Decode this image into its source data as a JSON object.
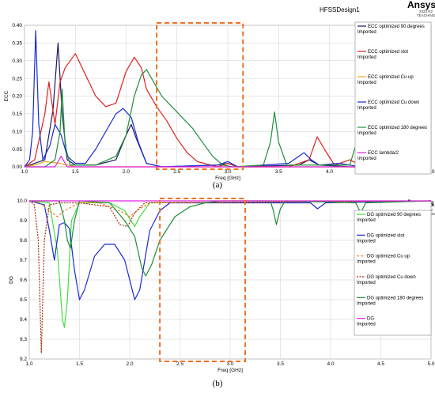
{
  "chart_data": [
    {
      "type": "line",
      "panel": "(a)",
      "design": "HFSSDesign1",
      "brand": "Ansys",
      "brand_sub1": "2023 R2",
      "brand_sub2": "TEACHING",
      "xlabel": "Freq [GHz]",
      "ylabel": "ECC",
      "xlim": [
        1.0,
        5.0
      ],
      "ylim": [
        0.0,
        0.4
      ],
      "xticks": [
        1.0,
        1.5,
        2.0,
        2.5,
        3.0,
        3.5,
        4.0,
        4.5,
        5.0
      ],
      "yticks": [
        0.0,
        0.05,
        0.1,
        0.15,
        0.2,
        0.25,
        0.3,
        0.35,
        0.4
      ],
      "grid": true,
      "legend_position": "top-right",
      "highlight_box": {
        "x_from": 2.3,
        "x_to": 3.15,
        "y_from": 0.0,
        "y_to": 0.4
      },
      "series": [
        {
          "name": "ECC optimized 90 degrees",
          "sub": "Imported",
          "color": "#1a1a5e",
          "points": [
            [
              1.0,
              0.0
            ],
            [
              1.1,
              0.01
            ],
            [
              1.2,
              0.02
            ],
            [
              1.28,
              0.16
            ],
            [
              1.33,
              0.35
            ],
            [
              1.37,
              0.15
            ],
            [
              1.42,
              0.02
            ],
            [
              1.5,
              0.005
            ],
            [
              1.7,
              0.005
            ],
            [
              1.9,
              0.02
            ],
            [
              2.0,
              0.09
            ],
            [
              2.05,
              0.12
            ],
            [
              2.1,
              0.08
            ],
            [
              2.2,
              0.01
            ],
            [
              2.35,
              0.0
            ],
            [
              2.9,
              0.005
            ],
            [
              3.0,
              0.01
            ],
            [
              3.1,
              0.0
            ],
            [
              3.7,
              0.005
            ],
            [
              3.8,
              0.02
            ],
            [
              3.9,
              0.005
            ],
            [
              4.2,
              0.0
            ],
            [
              5.0,
              0.0
            ]
          ]
        },
        {
          "name": "ECC optimized slot",
          "sub": "Imported",
          "color": "#e02020",
          "points": [
            [
              1.0,
              0.0
            ],
            [
              1.1,
              0.02
            ],
            [
              1.2,
              0.15
            ],
            [
              1.24,
              0.24
            ],
            [
              1.3,
              0.12
            ],
            [
              1.35,
              0.24
            ],
            [
              1.4,
              0.28
            ],
            [
              1.5,
              0.32
            ],
            [
              1.6,
              0.26
            ],
            [
              1.7,
              0.2
            ],
            [
              1.8,
              0.17
            ],
            [
              1.9,
              0.18
            ],
            [
              2.0,
              0.27
            ],
            [
              2.08,
              0.31
            ],
            [
              2.15,
              0.28
            ],
            [
              2.2,
              0.22
            ],
            [
              2.3,
              0.17
            ],
            [
              2.4,
              0.13
            ],
            [
              2.5,
              0.08
            ],
            [
              2.6,
              0.04
            ],
            [
              2.7,
              0.015
            ],
            [
              2.9,
              0.0
            ],
            [
              3.0,
              0.01
            ],
            [
              3.1,
              0.0
            ],
            [
              3.6,
              0.0
            ],
            [
              3.8,
              0.02
            ],
            [
              3.88,
              0.085
            ],
            [
              3.95,
              0.05
            ],
            [
              4.05,
              0.005
            ],
            [
              4.2,
              0.02
            ],
            [
              4.3,
              0.005
            ],
            [
              5.0,
              0.0
            ]
          ]
        },
        {
          "name": "ECC optimized Cu up",
          "sub": "Imported",
          "color": "#f0a020",
          "points": [
            [
              1.0,
              0.0
            ],
            [
              1.1,
              0.005
            ],
            [
              1.2,
              0.015
            ],
            [
              1.35,
              0.01
            ],
            [
              1.5,
              0.0
            ],
            [
              5.0,
              0.0
            ]
          ]
        },
        {
          "name": "ECC optimized Cu down",
          "sub": "Imported",
          "color": "#1a2ad8",
          "points": [
            [
              1.0,
              0.0
            ],
            [
              1.05,
              0.02
            ],
            [
              1.08,
              0.1
            ],
            [
              1.11,
              0.385
            ],
            [
              1.14,
              0.12
            ],
            [
              1.18,
              0.02
            ],
            [
              1.25,
              0.06
            ],
            [
              1.3,
              0.12
            ],
            [
              1.36,
              0.09
            ],
            [
              1.42,
              0.03
            ],
            [
              1.5,
              0.01
            ],
            [
              1.6,
              0.01
            ],
            [
              1.7,
              0.05
            ],
            [
              1.8,
              0.1
            ],
            [
              1.9,
              0.15
            ],
            [
              1.97,
              0.165
            ],
            [
              2.05,
              0.14
            ],
            [
              2.12,
              0.07
            ],
            [
              2.2,
              0.01
            ],
            [
              2.35,
              0.0
            ],
            [
              2.9,
              0.005
            ],
            [
              3.0,
              0.015
            ],
            [
              3.1,
              0.0
            ],
            [
              3.6,
              0.01
            ],
            [
              3.75,
              0.04
            ],
            [
              3.82,
              0.02
            ],
            [
              3.9,
              0.005
            ],
            [
              4.1,
              0.01
            ],
            [
              4.3,
              0.0
            ],
            [
              5.0,
              0.0
            ]
          ]
        },
        {
          "name": "ECC optimized 180 degrees",
          "sub": "Imported",
          "color": "#1f8f3a",
          "points": [
            [
              1.0,
              0.0
            ],
            [
              1.2,
              0.0
            ],
            [
              1.3,
              0.02
            ],
            [
              1.35,
              0.1
            ],
            [
              1.37,
              0.22
            ],
            [
              1.4,
              0.06
            ],
            [
              1.45,
              0.005
            ],
            [
              1.7,
              0.005
            ],
            [
              1.9,
              0.03
            ],
            [
              2.0,
              0.09
            ],
            [
              2.08,
              0.2
            ],
            [
              2.15,
              0.26
            ],
            [
              2.2,
              0.275
            ],
            [
              2.27,
              0.24
            ],
            [
              2.35,
              0.2
            ],
            [
              2.45,
              0.17
            ],
            [
              2.55,
              0.14
            ],
            [
              2.65,
              0.11
            ],
            [
              2.75,
              0.07
            ],
            [
              2.85,
              0.03
            ],
            [
              2.95,
              0.005
            ],
            [
              3.05,
              0.0
            ],
            [
              3.35,
              0.005
            ],
            [
              3.42,
              0.07
            ],
            [
              3.46,
              0.155
            ],
            [
              3.5,
              0.07
            ],
            [
              3.58,
              0.005
            ],
            [
              4.2,
              0.005
            ],
            [
              4.28,
              0.08
            ],
            [
              4.3,
              0.1
            ],
            [
              4.35,
              0.03
            ],
            [
              4.45,
              0.0
            ],
            [
              5.0,
              0.0
            ]
          ]
        },
        {
          "name": "ECC lambda/2",
          "sub": "Imported",
          "color": "#e020e0",
          "points": [
            [
              1.0,
              0.0
            ],
            [
              1.3,
              0.0
            ],
            [
              1.36,
              0.03
            ],
            [
              1.42,
              0.0
            ],
            [
              5.0,
              0.0
            ]
          ]
        }
      ]
    },
    {
      "type": "line",
      "panel": "(b)",
      "design": "HFSSDesign1",
      "brand": "Ansys",
      "brand_sub1": "2023 R2",
      "brand_sub2": "TEACHING",
      "xlabel": "Freq [GHz]",
      "ylabel": "DG",
      "xlim": [
        1.0,
        5.0
      ],
      "ylim": [
        9.2,
        10.0
      ],
      "xticks": [
        1.0,
        1.5,
        2.0,
        2.5,
        3.0,
        3.5,
        4.0,
        4.5,
        5.0
      ],
      "yticks": [
        9.2,
        9.3,
        9.4,
        9.5,
        9.6,
        9.7,
        9.8,
        9.9,
        10.0
      ],
      "grid": true,
      "legend_position": "top-right",
      "highlight_box": {
        "x_from": 2.3,
        "x_to": 3.15,
        "y_from": 9.2,
        "y_to": 10.0
      },
      "series": [
        {
          "name": "DG optimized 90 degrees",
          "sub": "Imported",
          "color": "#40e040",
          "dash": "",
          "points": [
            [
              1.0,
              10.0
            ],
            [
              1.2,
              9.99
            ],
            [
              1.28,
              9.75
            ],
            [
              1.33,
              9.4
            ],
            [
              1.35,
              9.36
            ],
            [
              1.38,
              9.5
            ],
            [
              1.42,
              9.9
            ],
            [
              1.5,
              9.99
            ],
            [
              1.8,
              9.99
            ],
            [
              1.95,
              9.95
            ],
            [
              2.05,
              9.87
            ],
            [
              2.1,
              9.92
            ],
            [
              2.2,
              9.99
            ],
            [
              5.0,
              10.0
            ]
          ]
        },
        {
          "name": "DG optimized slot",
          "sub": "Imported",
          "color": "#1a2ad8",
          "dash": "",
          "points": [
            [
              1.0,
              10.0
            ],
            [
              1.15,
              9.98
            ],
            [
              1.2,
              9.85
            ],
            [
              1.25,
              9.7
            ],
            [
              1.3,
              9.88
            ],
            [
              1.35,
              9.89
            ],
            [
              1.4,
              9.86
            ],
            [
              1.45,
              9.65
            ],
            [
              1.5,
              9.5
            ],
            [
              1.55,
              9.55
            ],
            [
              1.65,
              9.72
            ],
            [
              1.75,
              9.78
            ],
            [
              1.85,
              9.78
            ],
            [
              1.95,
              9.7
            ],
            [
              2.05,
              9.5
            ],
            [
              2.1,
              9.55
            ],
            [
              2.15,
              9.7
            ],
            [
              2.2,
              9.85
            ],
            [
              2.3,
              9.95
            ],
            [
              2.4,
              9.99
            ],
            [
              3.8,
              9.99
            ],
            [
              3.87,
              9.96
            ],
            [
              3.95,
              9.99
            ],
            [
              5.0,
              10.0
            ]
          ]
        },
        {
          "name": "DG optimized Cu up",
          "sub": "Imported",
          "color": "#f08030",
          "dash": "3,2",
          "points": [
            [
              1.0,
              10.0
            ],
            [
              1.1,
              9.99
            ],
            [
              1.2,
              9.95
            ],
            [
              1.28,
              9.92
            ],
            [
              1.35,
              9.95
            ],
            [
              1.5,
              9.99
            ],
            [
              1.7,
              9.99
            ],
            [
              1.9,
              9.95
            ],
            [
              2.0,
              9.92
            ],
            [
              2.1,
              9.96
            ],
            [
              2.2,
              9.99
            ],
            [
              5.0,
              10.0
            ]
          ]
        },
        {
          "name": "DG optimized Cu down",
          "sub": "Imported",
          "color": "#a03010",
          "dash": "2,1.5",
          "points": [
            [
              1.0,
              10.0
            ],
            [
              1.05,
              9.98
            ],
            [
              1.09,
              9.8
            ],
            [
              1.12,
              9.23
            ],
            [
              1.15,
              9.8
            ],
            [
              1.2,
              9.98
            ],
            [
              1.3,
              9.99
            ],
            [
              1.5,
              9.99
            ],
            [
              1.8,
              9.97
            ],
            [
              1.9,
              9.88
            ],
            [
              1.98,
              9.87
            ],
            [
              2.05,
              9.94
            ],
            [
              2.15,
              9.99
            ],
            [
              5.0,
              10.0
            ]
          ]
        },
        {
          "name": "DG optimized 180 degrees",
          "sub": "Imported",
          "color": "#1f8f3a",
          "dash": "",
          "points": [
            [
              1.0,
              10.0
            ],
            [
              1.3,
              10.0
            ],
            [
              1.35,
              9.9
            ],
            [
              1.38,
              9.8
            ],
            [
              1.41,
              9.76
            ],
            [
              1.45,
              9.9
            ],
            [
              1.5,
              10.0
            ],
            [
              1.8,
              9.99
            ],
            [
              1.95,
              9.9
            ],
            [
              2.05,
              9.82
            ],
            [
              2.12,
              9.66
            ],
            [
              2.16,
              9.62
            ],
            [
              2.22,
              9.68
            ],
            [
              2.3,
              9.8
            ],
            [
              2.45,
              9.92
            ],
            [
              2.6,
              9.97
            ],
            [
              2.75,
              9.99
            ],
            [
              2.9,
              10.0
            ],
            [
              3.4,
              10.0
            ],
            [
              3.43,
              9.95
            ],
            [
              3.46,
              9.88
            ],
            [
              3.5,
              9.96
            ],
            [
              3.55,
              10.0
            ],
            [
              4.25,
              9.99
            ],
            [
              4.3,
              9.94
            ],
            [
              4.35,
              9.99
            ],
            [
              5.0,
              10.0
            ]
          ]
        },
        {
          "name": "DG",
          "sub": "Imported",
          "color": "#e020e0",
          "dash": "",
          "points": [
            [
              1.0,
              10.0
            ],
            [
              5.0,
              10.0
            ]
          ]
        }
      ]
    }
  ]
}
